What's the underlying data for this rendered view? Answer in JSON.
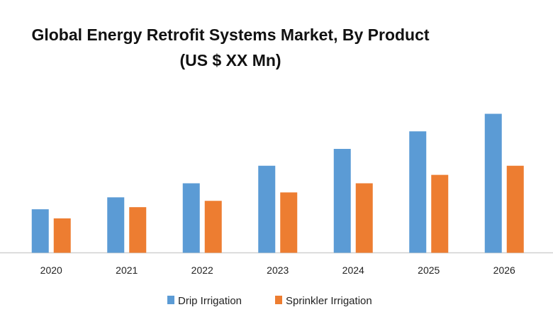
{
  "chart_data": {
    "type": "bar",
    "title": "Global Energy Retrofit Systems Market, By Product",
    "subtitle": "(US $ XX Mn)",
    "xlabel": "",
    "ylabel": "",
    "categories": [
      "2020",
      "2021",
      "2022",
      "2023",
      "2024",
      "2025",
      "2026"
    ],
    "series": [
      {
        "name": "Drip Irrigation",
        "color": "#5b9bd5",
        "values": [
          62,
          79,
          99,
          124,
          148,
          173,
          198
        ]
      },
      {
        "name": "Sprinkler Irrigation",
        "color": "#ed7d31",
        "values": [
          49,
          65,
          74,
          86,
          99,
          111,
          124
        ]
      }
    ],
    "ylim": [
      0,
      200
    ],
    "grid": false,
    "legend": "bottom"
  }
}
